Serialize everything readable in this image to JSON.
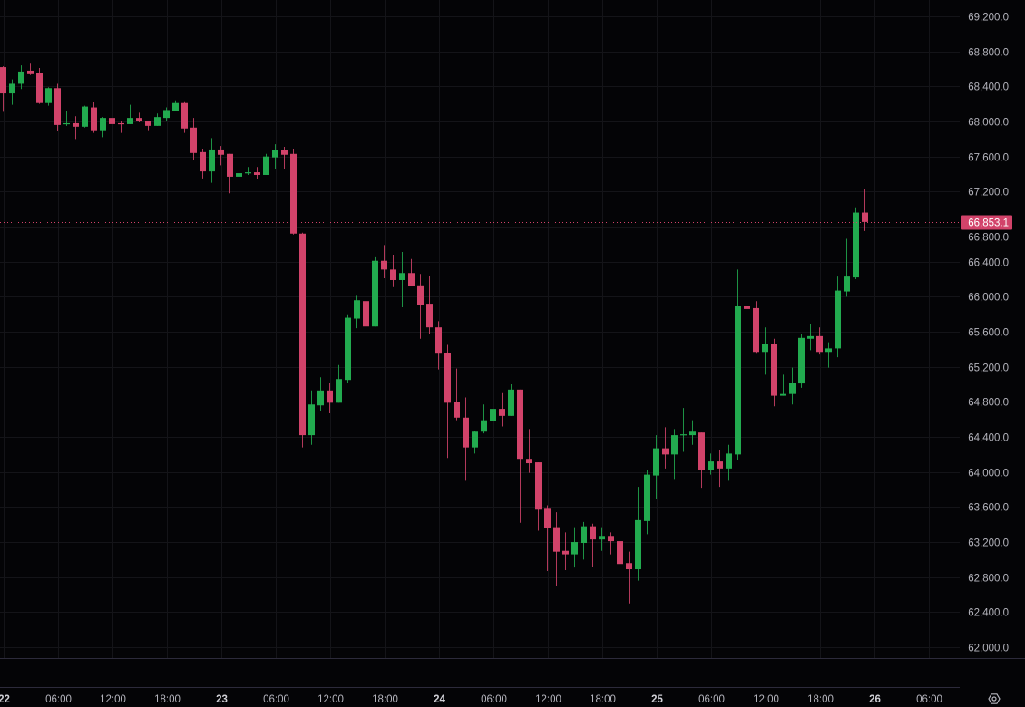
{
  "chart_data": {
    "type": "candlestick",
    "interval_hours": 1,
    "colors": {
      "up": "#22ab4f",
      "down": "#d2436a",
      "background": "#040406",
      "grid": "#141418",
      "axis_text": "#b4b4bc",
      "separator": "#2c2a3a"
    },
    "grid": true,
    "ylim": [
      62000,
      69200
    ],
    "y_ticks": [
      "69,200.0",
      "68,800.0",
      "68,400.0",
      "68,000.0",
      "67,600.0",
      "67,200.0",
      "66,800.0",
      "66,400.0",
      "66,000.0",
      "65,600.0",
      "65,200.0",
      "64,800.0",
      "64,400.0",
      "64,000.0",
      "63,600.0",
      "63,200.0",
      "62,800.0",
      "62,400.0",
      "62,000.0"
    ],
    "y_tick_values": [
      69200,
      68800,
      68400,
      68000,
      67600,
      67200,
      66800,
      66400,
      66000,
      65600,
      65200,
      64800,
      64400,
      64000,
      63600,
      63200,
      62800,
      62400,
      62000
    ],
    "x_ticks": [
      {
        "label": "22",
        "hour": 0,
        "bold": true
      },
      {
        "label": "06:00",
        "hour": 6
      },
      {
        "label": "12:00",
        "hour": 12
      },
      {
        "label": "18:00",
        "hour": 18
      },
      {
        "label": "23",
        "hour": 24,
        "bold": true
      },
      {
        "label": "06:00",
        "hour": 30
      },
      {
        "label": "12:00",
        "hour": 36
      },
      {
        "label": "18:00",
        "hour": 42
      },
      {
        "label": "24",
        "hour": 48,
        "bold": true
      },
      {
        "label": "06:00",
        "hour": 54
      },
      {
        "label": "12:00",
        "hour": 60
      },
      {
        "label": "18:00",
        "hour": 66
      },
      {
        "label": "25",
        "hour": 72,
        "bold": true
      },
      {
        "label": "06:00",
        "hour": 78
      },
      {
        "label": "12:00",
        "hour": 84
      },
      {
        "label": "18:00",
        "hour": 90
      },
      {
        "label": "26",
        "hour": 96,
        "bold": true
      },
      {
        "label": "06:00",
        "hour": 102
      }
    ],
    "last_price": 66853.1,
    "last_price_label": "66,853.1",
    "ohlc": [
      [
        68620,
        68630,
        68110,
        68320
      ],
      [
        68320,
        68480,
        68190,
        68430
      ],
      [
        68430,
        68640,
        68370,
        68570
      ],
      [
        68580,
        68660,
        68530,
        68540
      ],
      [
        68550,
        68610,
        68200,
        68210
      ],
      [
        68210,
        68390,
        68180,
        68380
      ],
      [
        68380,
        68430,
        67890,
        67960
      ],
      [
        67970,
        68120,
        67950,
        67980
      ],
      [
        67980,
        68060,
        67800,
        67940
      ],
      [
        67940,
        68180,
        67930,
        68170
      ],
      [
        68160,
        68220,
        67870,
        67900
      ],
      [
        67900,
        68050,
        67820,
        68040
      ],
      [
        68040,
        68080,
        67970,
        67970
      ],
      [
        67980,
        68010,
        67870,
        67970
      ],
      [
        67970,
        68190,
        67970,
        68040
      ],
      [
        68040,
        68100,
        67990,
        68000
      ],
      [
        68000,
        68010,
        67900,
        67950
      ],
      [
        67950,
        68090,
        67950,
        68050
      ],
      [
        68040,
        68160,
        68010,
        68130
      ],
      [
        68120,
        68240,
        68120,
        68210
      ],
      [
        68210,
        68230,
        67870,
        67920
      ],
      [
        67930,
        68040,
        67560,
        67640
      ],
      [
        67650,
        67690,
        67350,
        67430
      ],
      [
        67430,
        67810,
        67300,
        67680
      ],
      [
        67680,
        67720,
        67500,
        67620
      ],
      [
        67630,
        67630,
        67180,
        67370
      ],
      [
        67370,
        67450,
        67310,
        67410
      ],
      [
        67410,
        67480,
        67390,
        67420
      ],
      [
        67420,
        67480,
        67340,
        67390
      ],
      [
        67390,
        67630,
        67390,
        67600
      ],
      [
        67590,
        67740,
        67460,
        67670
      ],
      [
        67670,
        67710,
        67460,
        67620
      ],
      [
        67630,
        67690,
        66710,
        66720
      ],
      [
        66720,
        66730,
        64280,
        64420
      ],
      [
        64420,
        64930,
        64310,
        64770
      ],
      [
        64760,
        65080,
        64700,
        64930
      ],
      [
        64930,
        65020,
        64670,
        64790
      ],
      [
        64790,
        65220,
        64790,
        65060
      ],
      [
        65050,
        65800,
        65020,
        65760
      ],
      [
        65750,
        66010,
        65640,
        65960
      ],
      [
        65950,
        65950,
        65570,
        65660
      ],
      [
        65660,
        66460,
        65660,
        66410
      ],
      [
        66410,
        66590,
        66210,
        66310
      ],
      [
        66310,
        66480,
        66110,
        66190
      ],
      [
        66190,
        66510,
        65880,
        66270
      ],
      [
        66270,
        66430,
        66120,
        66120
      ],
      [
        66130,
        66260,
        65520,
        65910
      ],
      [
        65920,
        66240,
        65570,
        65650
      ],
      [
        65650,
        65720,
        65170,
        65350
      ],
      [
        65360,
        65450,
        64160,
        64790
      ],
      [
        64800,
        65180,
        64590,
        64620
      ],
      [
        64620,
        64850,
        63900,
        64280
      ],
      [
        64280,
        64470,
        64210,
        64460
      ],
      [
        64460,
        64770,
        64440,
        64590
      ],
      [
        64580,
        65010,
        64570,
        64720
      ],
      [
        64720,
        64900,
        64520,
        64640
      ],
      [
        64640,
        65000,
        64640,
        64940
      ],
      [
        64940,
        64940,
        63420,
        64150
      ],
      [
        64150,
        64490,
        63990,
        64100
      ],
      [
        64110,
        64110,
        63330,
        63570
      ],
      [
        63580,
        63620,
        62870,
        63360
      ],
      [
        63370,
        63540,
        62700,
        63090
      ],
      [
        63100,
        63310,
        62880,
        63060
      ],
      [
        63060,
        63370,
        62910,
        63200
      ],
      [
        63190,
        63430,
        63000,
        63380
      ],
      [
        63380,
        63410,
        62920,
        63230
      ],
      [
        63230,
        63370,
        63100,
        63270
      ],
      [
        63270,
        63310,
        63060,
        63210
      ],
      [
        63210,
        63350,
        62950,
        62950
      ],
      [
        62960,
        63090,
        62500,
        62890
      ],
      [
        62890,
        63830,
        62760,
        63450
      ],
      [
        63440,
        64020,
        63290,
        63970
      ],
      [
        63960,
        64420,
        63690,
        64270
      ],
      [
        64270,
        64510,
        64040,
        64200
      ],
      [
        64200,
        64490,
        63910,
        64420
      ],
      [
        64420,
        64730,
        64230,
        64430
      ],
      [
        64420,
        64590,
        64310,
        64460
      ],
      [
        64450,
        64450,
        63820,
        64020
      ],
      [
        64020,
        64210,
        63970,
        64120
      ],
      [
        64120,
        64250,
        63830,
        64040
      ],
      [
        64040,
        64310,
        63900,
        64210
      ],
      [
        64200,
        66310,
        64140,
        65890
      ],
      [
        65890,
        66310,
        65860,
        65860
      ],
      [
        65870,
        65950,
        65350,
        65370
      ],
      [
        65370,
        65650,
        65110,
        65460
      ],
      [
        65460,
        65520,
        64750,
        64870
      ],
      [
        64870,
        65110,
        64870,
        64890
      ],
      [
        64890,
        65190,
        64770,
        65020
      ],
      [
        65010,
        65580,
        64960,
        65530
      ],
      [
        65520,
        65690,
        65390,
        65550
      ],
      [
        65550,
        65650,
        65340,
        65370
      ],
      [
        65370,
        65480,
        65190,
        65410
      ],
      [
        65410,
        66230,
        65310,
        66070
      ],
      [
        66060,
        66660,
        66000,
        66230
      ],
      [
        66220,
        67020,
        66200,
        66960
      ],
      [
        66960,
        67230,
        66750,
        66853.1
      ]
    ]
  },
  "toolbar": {
    "settings_icon": "settings-hexagon-icon"
  }
}
